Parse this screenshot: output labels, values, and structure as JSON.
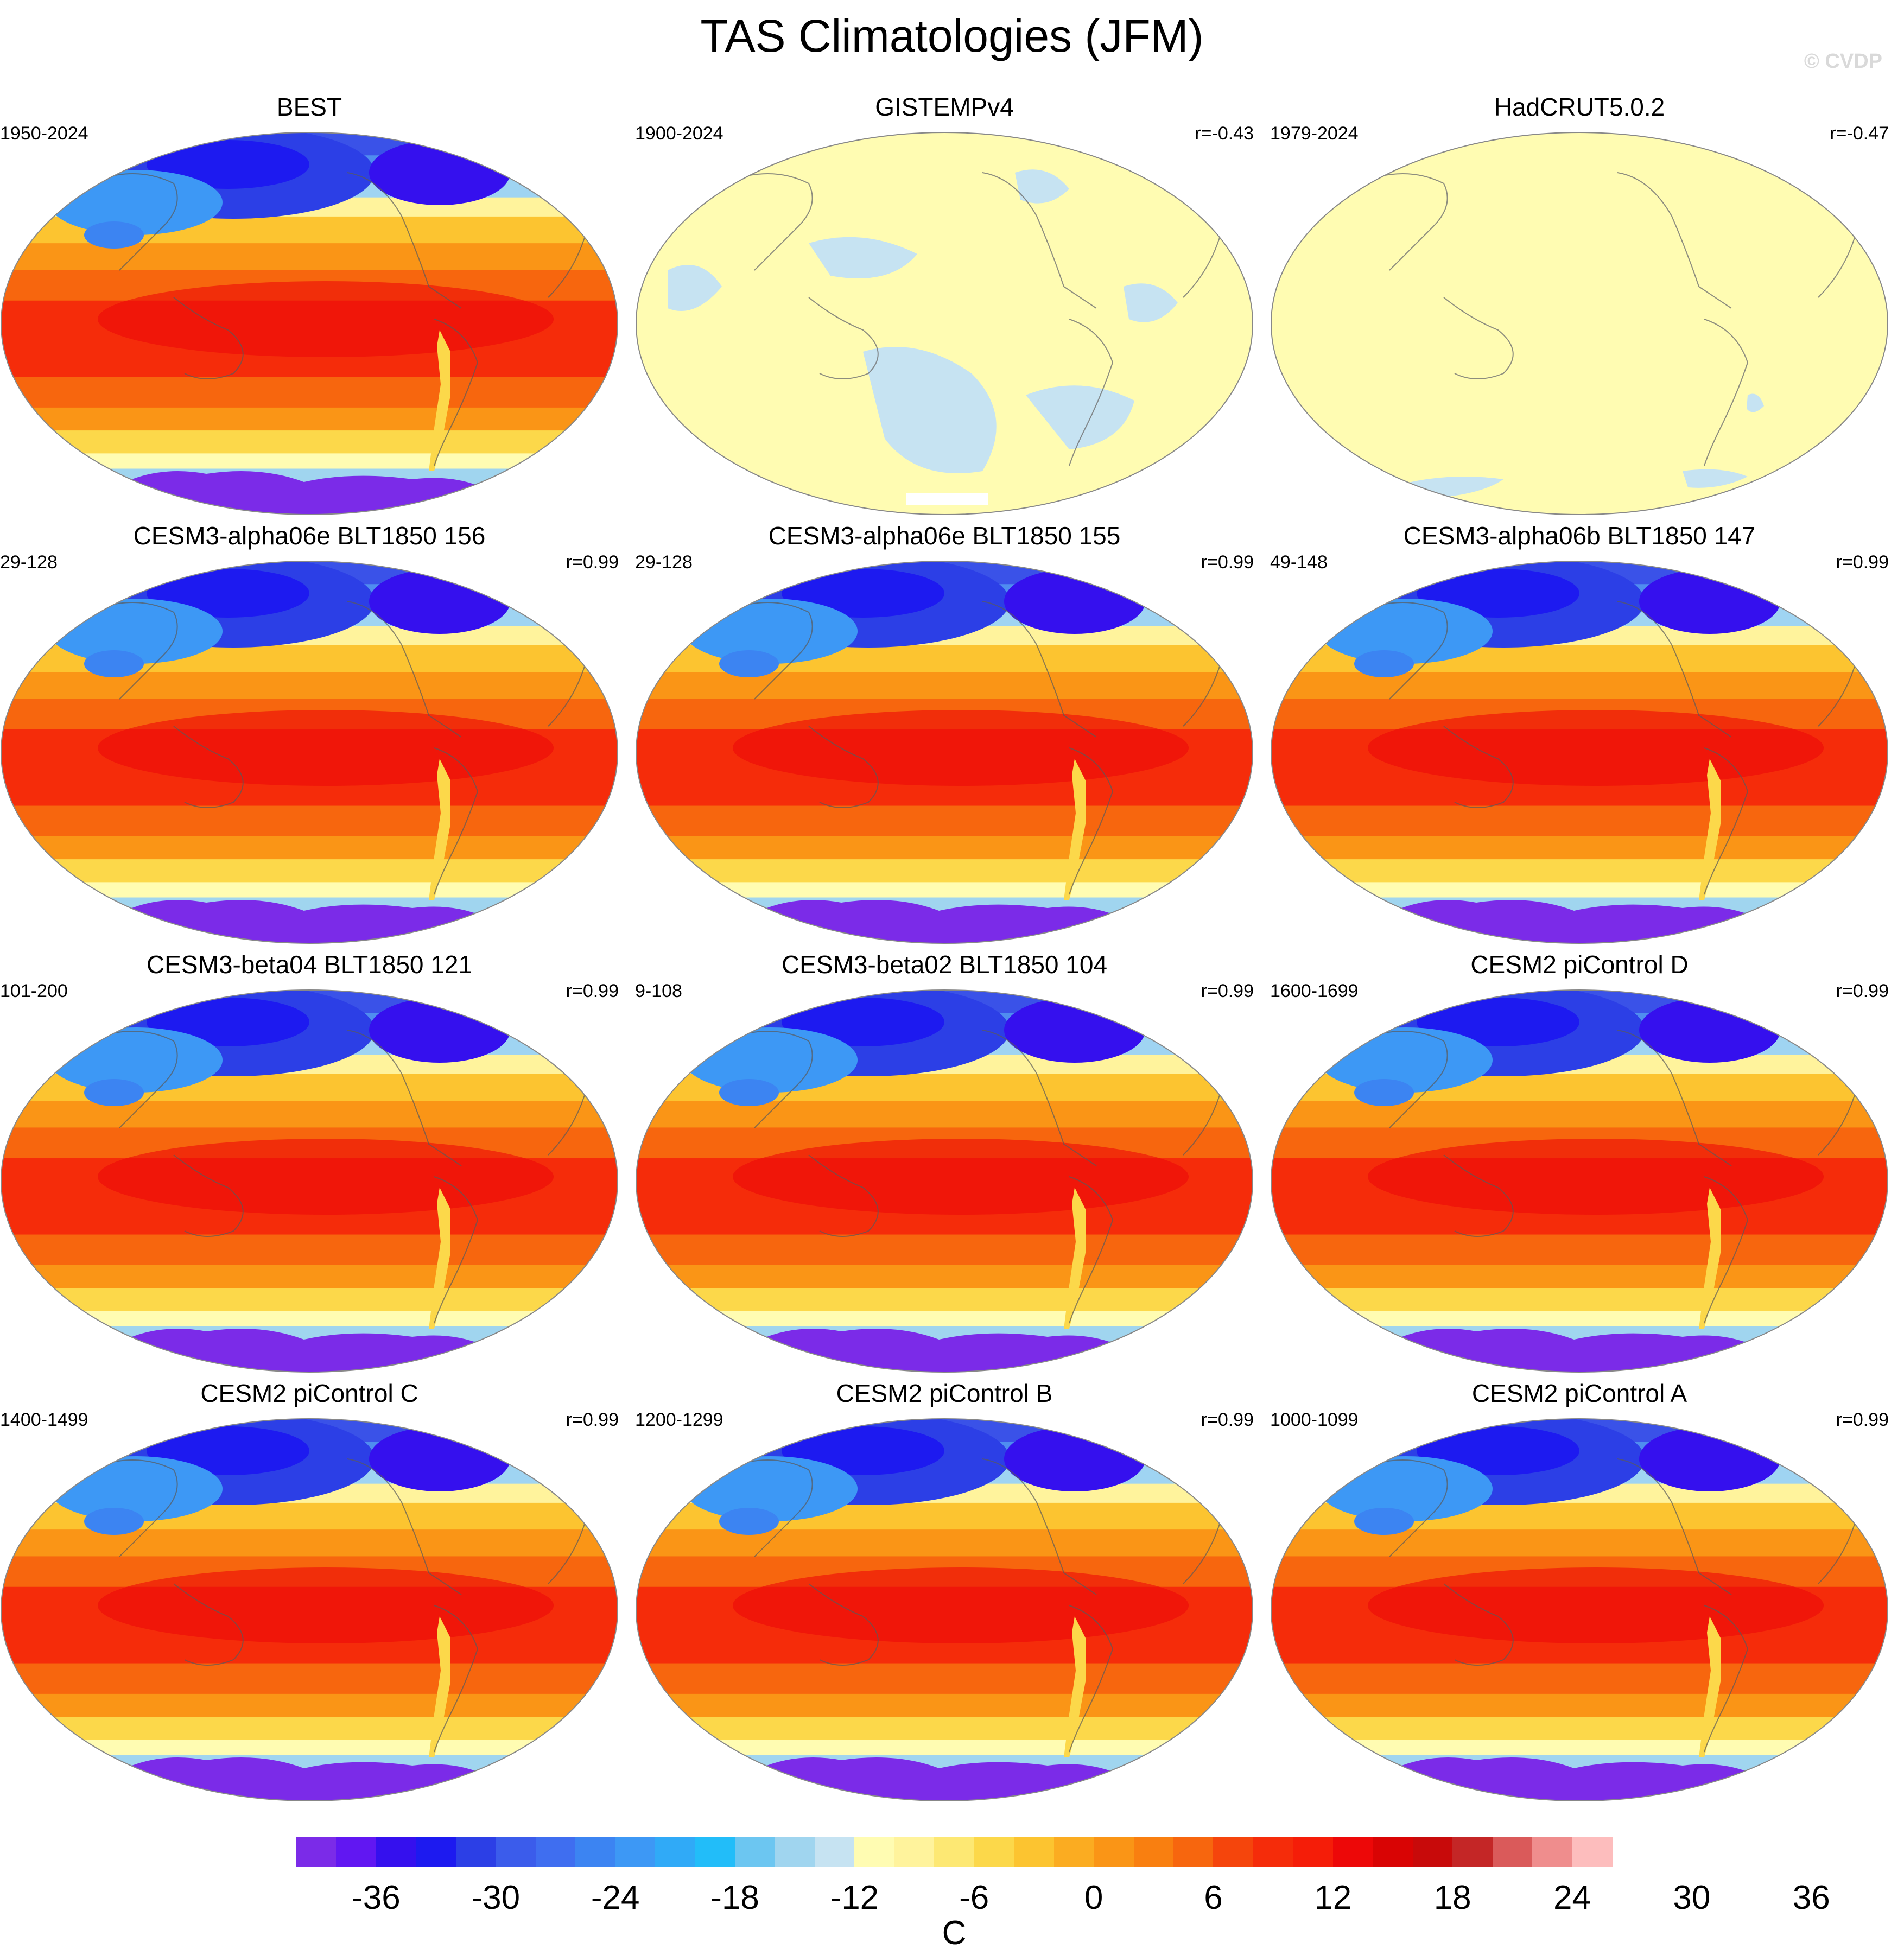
{
  "title": "TAS Climatologies (JFM)",
  "watermark": "© CVDP",
  "panels": [
    {
      "title": "BEST",
      "period": "1950-2024",
      "corr": "",
      "style": "full"
    },
    {
      "title": "GISTEMPv4",
      "period": "1900-2024",
      "corr": "r=-0.43",
      "style": "anomaly-g"
    },
    {
      "title": "HadCRUT5.0.2",
      "period": "1979-2024",
      "corr": "r=-0.47",
      "style": "anomaly-h"
    },
    {
      "title": "CESM3-alpha06e BLT1850 156",
      "period": "29-128",
      "corr": "r=0.99",
      "style": "full"
    },
    {
      "title": "CESM3-alpha06e BLT1850 155",
      "period": "29-128",
      "corr": "r=0.99",
      "style": "full"
    },
    {
      "title": "CESM3-alpha06b BLT1850 147",
      "period": "49-148",
      "corr": "r=0.99",
      "style": "full"
    },
    {
      "title": "CESM3-beta04 BLT1850 121",
      "period": "101-200",
      "corr": "r=0.99",
      "style": "full"
    },
    {
      "title": "CESM3-beta02 BLT1850 104",
      "period": "9-108",
      "corr": "r=0.99",
      "style": "full"
    },
    {
      "title": "CESM2 piControl D",
      "period": "1600-1699",
      "corr": "r=0.99",
      "style": "full"
    },
    {
      "title": "CESM2 piControl C",
      "period": "1400-1499",
      "corr": "r=0.99",
      "style": "full"
    },
    {
      "title": "CESM2 piControl B",
      "period": "1200-1299",
      "corr": "r=0.99",
      "style": "full"
    },
    {
      "title": "CESM2 piControl A",
      "period": "1000-1099",
      "corr": "r=0.99",
      "style": "full"
    }
  ],
  "colorbar": {
    "unit": "C",
    "tick_labels": [
      "-36",
      "-30",
      "-24",
      "-18",
      "-12",
      "-6",
      "0",
      "6",
      "12",
      "18",
      "24",
      "30",
      "36"
    ],
    "colors": [
      "#7b2be8",
      "#6117f2",
      "#3510ee",
      "#1d1af0",
      "#2c3fe6",
      "#3b5ceb",
      "#3f6ef0",
      "#3c84f2",
      "#3d98f5",
      "#30aaf7",
      "#22bdf9",
      "#6cc6f1",
      "#a0d5ef",
      "#c6e3f2",
      "#fffcb2",
      "#fff39c",
      "#fde873",
      "#fcd84a",
      "#fcc430",
      "#fbac21",
      "#fa9516",
      "#f97f10",
      "#f7660e",
      "#f5450c",
      "#f52c0a",
      "#f51d08",
      "#ed0808",
      "#d90404",
      "#c80a0a",
      "#c42626",
      "#da5a5a",
      "#ef8d8d",
      "#fdbdbd"
    ]
  }
}
